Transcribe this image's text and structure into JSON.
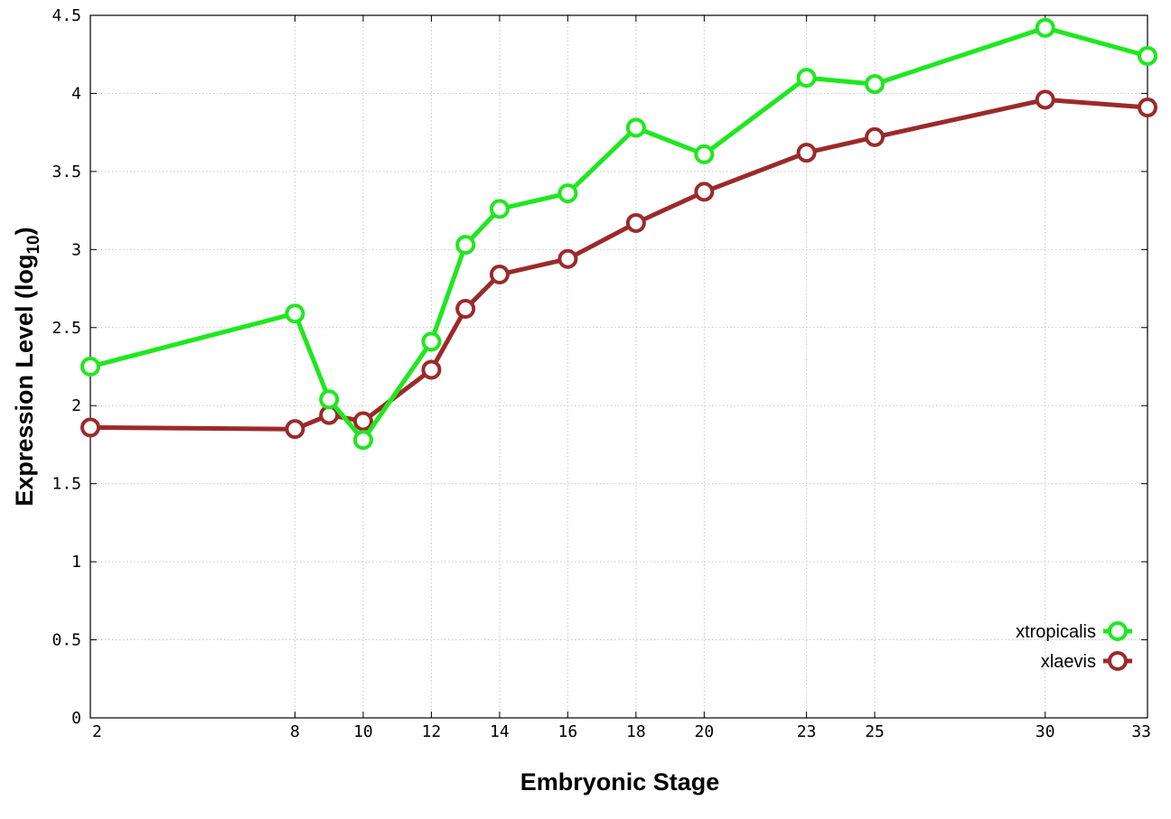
{
  "chart_data": {
    "type": "line",
    "xlabel": "Embryonic Stage",
    "ylabel_main": "Expression Level (log",
    "ylabel_sub": "10",
    "ylabel_close": ")",
    "ylim": [
      0,
      4.5
    ],
    "xlim": [
      2,
      33
    ],
    "x_ticks": [
      2,
      8,
      10,
      12,
      14,
      16,
      18,
      20,
      23,
      25,
      30,
      33
    ],
    "y_ticks": [
      0,
      0.5,
      1,
      1.5,
      2,
      2.5,
      3,
      3.5,
      4,
      4.5
    ],
    "y_tick_labels": [
      "0",
      "0.5",
      "1",
      "1.5",
      "2",
      "2.5",
      "3",
      "3.5",
      "4",
      "4.5"
    ],
    "grid": true,
    "legend_position": "bottom-right",
    "x": [
      2,
      8,
      9,
      10,
      12,
      13,
      14,
      16,
      18,
      20,
      23,
      25,
      30,
      33
    ],
    "series": [
      {
        "name": "xtropicalis",
        "color": "#1ee81e",
        "values": [
          2.25,
          2.59,
          2.04,
          1.78,
          2.41,
          3.03,
          3.26,
          3.36,
          3.78,
          3.61,
          4.1,
          4.06,
          4.42,
          4.24
        ]
      },
      {
        "name": "xlaevis",
        "color": "#9b2a2a",
        "values": [
          1.86,
          1.85,
          1.94,
          1.9,
          2.23,
          2.62,
          2.84,
          2.94,
          3.17,
          3.37,
          3.62,
          3.72,
          3.96,
          3.91
        ]
      }
    ]
  }
}
